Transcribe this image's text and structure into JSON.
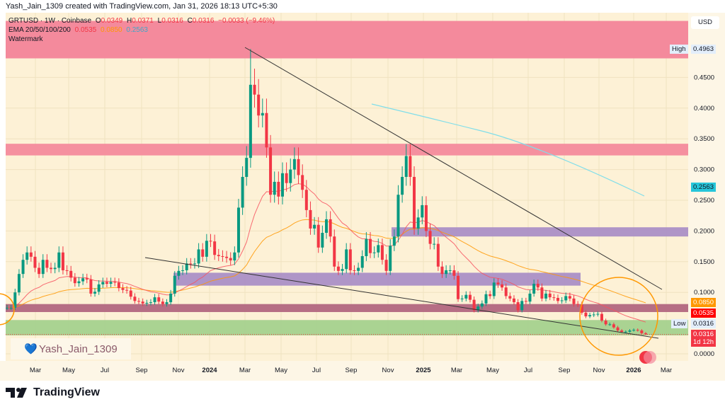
{
  "credit": "Yash_Jain_1309 created with TradingView.com, Jan 31, 2026 18:13 UTC+5:30",
  "legend": {
    "symbol": "GRTUSD · 1W · Coinbase",
    "o_label": "O",
    "o": "0.0349",
    "h_label": "H",
    "h": "0.0371",
    "l_label": "L",
    "l": "0.0316",
    "c_label": "C",
    "c": "0.0316",
    "change": "−0.0033 (−9.46%)",
    "ema_label": "EMA 20/50/100/200",
    "ema20": "0.0535",
    "ema50": "0.0850",
    "ema200": "0.2563",
    "watermark_label": "Watermark"
  },
  "price_axis": {
    "currency": "USD",
    "ticks": [
      "0.4500",
      "0.4000",
      "0.3500",
      "0.3000",
      "0.2500",
      "0.2000",
      "0.1500",
      "0.1000",
      "0.0000"
    ],
    "tick_values": [
      0.45,
      0.4,
      0.35,
      0.3,
      0.25,
      0.2,
      0.15,
      0.1,
      0.0
    ],
    "high_label": "High",
    "high_value": "0.4963",
    "low_label": "Low",
    "low_value": "0.0316",
    "ema200_tag": "0.2563",
    "ema50_tag": "0.0850",
    "ema20_tag": "0.0535",
    "last_price_tag": "0.0316",
    "countdown": "1d 12h"
  },
  "time_axis": [
    "Mar",
    "May",
    "Jul",
    "Sep",
    "Nov",
    "2024",
    "Mar",
    "May",
    "Jul",
    "Sep",
    "Nov",
    "2025",
    "Mar",
    "May",
    "Jul",
    "Sep",
    "Nov",
    "2026",
    "Mar"
  ],
  "watermark": {
    "text": "Yash_Jain_1309",
    "icon": "heart-icon"
  },
  "footer": {
    "brand": "TradingView",
    "icon": "tradingview-logo-icon"
  },
  "colors": {
    "background": "#fdf1d6",
    "up": "#089981",
    "down": "#f23645",
    "ema20": "#f7525f",
    "ema50": "#ff9800",
    "ema200": "#80deea",
    "zone_pink": "#f48a9c",
    "zone_purple": "#ab8fc6",
    "zone_maroon": "#b2667f",
    "zone_green": "#a5d18e",
    "circle": "#ff9800"
  },
  "zones": [
    {
      "type": "resistance",
      "color": "zone_pink",
      "from": 0.481,
      "to": 0.542
    },
    {
      "type": "resistance",
      "color": "zone_pink",
      "from": 0.323,
      "to": 0.342
    },
    {
      "type": "range",
      "color": "zone_purple",
      "from": 0.191,
      "to": 0.206
    },
    {
      "type": "range",
      "color": "zone_purple",
      "from": 0.111,
      "to": 0.132
    },
    {
      "type": "support",
      "color": "zone_maroon",
      "from": 0.068,
      "to": 0.081
    },
    {
      "type": "support",
      "color": "zone_green",
      "from": 0.03,
      "to": 0.055
    }
  ],
  "chart_data": {
    "type": "candlestick",
    "interval": "1W",
    "ylim": [
      0,
      0.55
    ],
    "close": [
      0.075,
      0.075,
      0.1,
      0.13,
      0.153,
      0.165,
      0.158,
      0.14,
      0.13,
      0.153,
      0.14,
      0.138,
      0.14,
      0.165,
      0.136,
      0.135,
      0.124,
      0.115,
      0.118,
      0.123,
      0.121,
      0.098,
      0.101,
      0.113,
      0.117,
      0.114,
      0.117,
      0.116,
      0.107,
      0.104,
      0.103,
      0.093,
      0.086,
      0.085,
      0.082,
      0.083,
      0.084,
      0.092,
      0.085,
      0.081,
      0.084,
      0.098,
      0.127,
      0.135,
      0.136,
      0.147,
      0.146,
      0.147,
      0.17,
      0.158,
      0.184,
      0.183,
      0.161,
      0.159,
      0.158,
      0.156,
      0.152,
      0.165,
      0.238,
      0.288,
      0.319,
      0.438,
      0.422,
      0.388,
      0.392,
      0.336,
      0.259,
      0.28,
      0.256,
      0.294,
      0.278,
      0.3,
      0.317,
      0.291,
      0.267,
      0.234,
      0.204,
      0.21,
      0.173,
      0.197,
      0.219,
      0.191,
      0.142,
      0.135,
      0.138,
      0.17,
      0.136,
      0.135,
      0.14,
      0.159,
      0.187,
      0.164,
      0.165,
      0.177,
      0.153,
      0.135,
      0.176,
      0.191,
      0.259,
      0.288,
      0.322,
      0.288,
      0.204,
      0.222,
      0.242,
      0.2,
      0.179,
      0.179,
      0.142,
      0.13,
      0.136,
      0.136,
      0.127,
      0.089,
      0.09,
      0.096,
      0.088,
      0.071,
      0.077,
      0.082,
      0.097,
      0.094,
      0.116,
      0.113,
      0.108,
      0.094,
      0.09,
      0.084,
      0.071,
      0.086,
      0.085,
      0.098,
      0.114,
      0.108,
      0.09,
      0.098,
      0.092,
      0.091,
      0.086,
      0.087,
      0.094,
      0.09,
      0.081,
      0.08,
      0.067,
      0.061,
      0.063,
      0.064,
      0.065,
      0.054,
      0.048,
      0.048,
      0.043,
      0.038,
      0.0357,
      0.036,
      0.038,
      0.039,
      0.038,
      0.0335,
      0.0316
    ],
    "high": 0.4963,
    "low": 0.0316
  }
}
